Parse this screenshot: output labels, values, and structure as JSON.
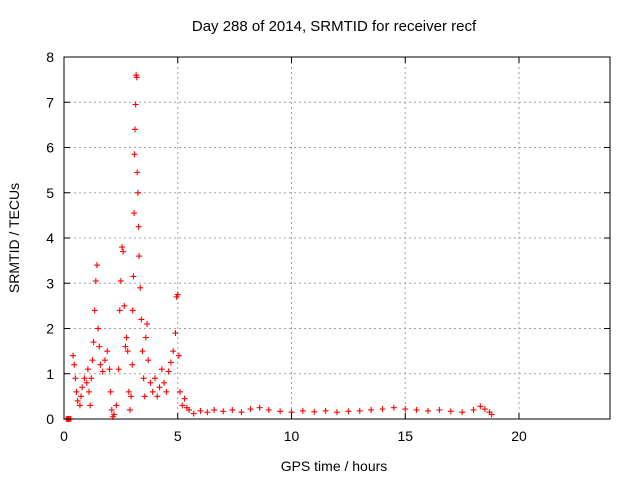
{
  "chart_data": {
    "type": "scatter",
    "title": "Day 288 of 2014, SRMTID for receiver recf",
    "xlabel": "GPS time / hours",
    "ylabel": "SRMTID / TECUs",
    "xlim": [
      0,
      24
    ],
    "ylim": [
      0,
      8
    ],
    "xticks": [
      0,
      5,
      10,
      15,
      20
    ],
    "yticks": [
      0,
      1,
      2,
      3,
      4,
      5,
      6,
      7,
      8
    ],
    "grid": true,
    "marker": "+",
    "series_color": "#ff0000",
    "series": [
      {
        "name": "SRMTID",
        "points": [
          [
            0.1,
            0.0
          ],
          [
            0.15,
            0.0
          ],
          [
            0.2,
            0.0
          ],
          [
            0.25,
            0.0
          ],
          [
            0.3,
            0.0
          ],
          [
            0.4,
            1.4
          ],
          [
            0.45,
            1.2
          ],
          [
            0.5,
            0.9
          ],
          [
            0.55,
            0.6
          ],
          [
            0.6,
            0.4
          ],
          [
            0.7,
            0.3
          ],
          [
            0.75,
            0.5
          ],
          [
            0.8,
            0.7
          ],
          [
            0.9,
            0.9
          ],
          [
            1.0,
            0.8
          ],
          [
            1.05,
            1.1
          ],
          [
            1.1,
            0.6
          ],
          [
            1.15,
            0.3
          ],
          [
            1.2,
            0.9
          ],
          [
            1.25,
            1.3
          ],
          [
            1.3,
            1.7
          ],
          [
            1.35,
            2.4
          ],
          [
            1.4,
            3.05
          ],
          [
            1.45,
            3.4
          ],
          [
            1.5,
            2.0
          ],
          [
            1.55,
            1.6
          ],
          [
            1.6,
            1.2
          ],
          [
            1.7,
            1.05
          ],
          [
            1.8,
            1.3
          ],
          [
            1.9,
            1.5
          ],
          [
            2.0,
            1.1
          ],
          [
            2.05,
            0.6
          ],
          [
            2.1,
            0.2
          ],
          [
            2.15,
            0.05
          ],
          [
            2.2,
            0.1
          ],
          [
            2.3,
            0.3
          ],
          [
            2.4,
            1.1
          ],
          [
            2.45,
            2.4
          ],
          [
            2.5,
            3.05
          ],
          [
            2.55,
            3.8
          ],
          [
            2.6,
            3.7
          ],
          [
            2.65,
            2.5
          ],
          [
            2.7,
            1.6
          ],
          [
            2.75,
            1.8
          ],
          [
            2.8,
            1.5
          ],
          [
            2.85,
            0.6
          ],
          [
            2.9,
            0.2
          ],
          [
            2.95,
            0.5
          ],
          [
            3.0,
            1.2
          ],
          [
            3.02,
            2.4
          ],
          [
            3.05,
            3.15
          ],
          [
            3.08,
            4.55
          ],
          [
            3.1,
            5.85
          ],
          [
            3.12,
            6.4
          ],
          [
            3.15,
            6.95
          ],
          [
            3.17,
            7.6
          ],
          [
            3.2,
            7.55
          ],
          [
            3.22,
            5.45
          ],
          [
            3.25,
            5.0
          ],
          [
            3.28,
            4.25
          ],
          [
            3.3,
            3.6
          ],
          [
            3.35,
            2.9
          ],
          [
            3.4,
            2.2
          ],
          [
            3.45,
            1.5
          ],
          [
            3.5,
            0.9
          ],
          [
            3.55,
            0.5
          ],
          [
            3.6,
            1.8
          ],
          [
            3.65,
            2.1
          ],
          [
            3.7,
            1.3
          ],
          [
            3.8,
            0.8
          ],
          [
            3.9,
            0.6
          ],
          [
            4.0,
            0.9
          ],
          [
            4.1,
            0.5
          ],
          [
            4.2,
            0.7
          ],
          [
            4.3,
            1.1
          ],
          [
            4.4,
            0.8
          ],
          [
            4.5,
            0.6
          ],
          [
            4.6,
            1.05
          ],
          [
            4.7,
            1.25
          ],
          [
            4.8,
            1.5
          ],
          [
            4.9,
            1.9
          ],
          [
            4.95,
            2.7
          ],
          [
            5.0,
            2.75
          ],
          [
            5.05,
            1.4
          ],
          [
            5.1,
            0.6
          ],
          [
            5.2,
            0.3
          ],
          [
            5.3,
            0.45
          ],
          [
            5.4,
            0.25
          ],
          [
            5.5,
            0.2
          ],
          [
            5.7,
            0.12
          ],
          [
            6.0,
            0.18
          ],
          [
            6.3,
            0.15
          ],
          [
            6.6,
            0.2
          ],
          [
            7.0,
            0.17
          ],
          [
            7.4,
            0.2
          ],
          [
            7.8,
            0.15
          ],
          [
            8.2,
            0.22
          ],
          [
            8.6,
            0.25
          ],
          [
            9.0,
            0.2
          ],
          [
            9.5,
            0.17
          ],
          [
            10.0,
            0.15
          ],
          [
            10.5,
            0.18
          ],
          [
            11.0,
            0.16
          ],
          [
            11.5,
            0.18
          ],
          [
            12.0,
            0.15
          ],
          [
            12.5,
            0.17
          ],
          [
            13.0,
            0.18
          ],
          [
            13.5,
            0.2
          ],
          [
            14.0,
            0.22
          ],
          [
            14.5,
            0.25
          ],
          [
            15.0,
            0.22
          ],
          [
            15.5,
            0.2
          ],
          [
            16.0,
            0.18
          ],
          [
            16.5,
            0.2
          ],
          [
            17.0,
            0.17
          ],
          [
            17.5,
            0.15
          ],
          [
            18.0,
            0.2
          ],
          [
            18.3,
            0.28
          ],
          [
            18.5,
            0.22
          ],
          [
            18.7,
            0.15
          ],
          [
            18.8,
            0.1
          ]
        ]
      }
    ]
  }
}
